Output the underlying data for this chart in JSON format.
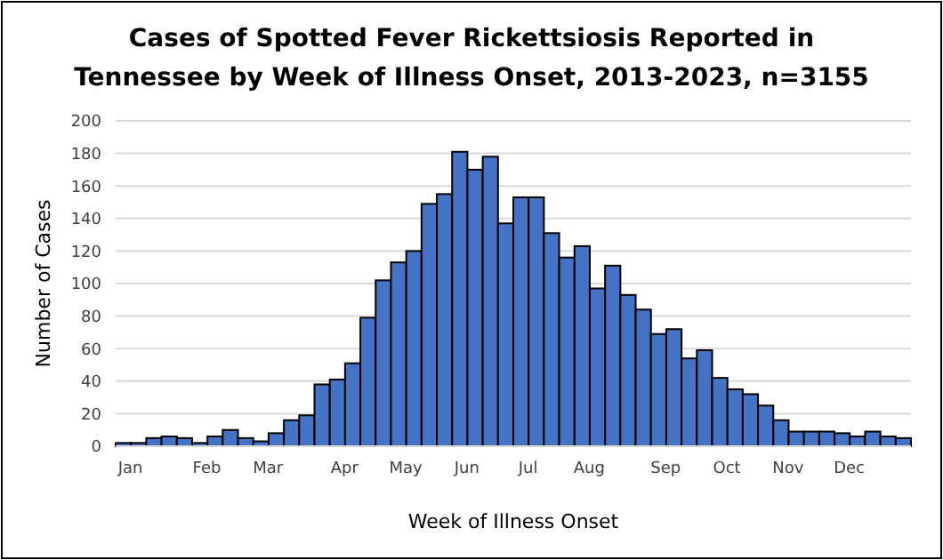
{
  "chart_data": {
    "type": "bar",
    "title": "Cases of Spotted Fever Rickettsiosis Reported in Tennessee by Week of Illness Onset, 2013-2023, n=3155",
    "xlabel": "Week of Illness Onset",
    "ylabel": "Number of Cases",
    "categories": [
      "Jan",
      null,
      null,
      null,
      null,
      "Feb",
      null,
      null,
      null,
      "Mar",
      null,
      null,
      null,
      null,
      "Apr",
      null,
      null,
      null,
      "May",
      null,
      null,
      null,
      "Jun",
      null,
      null,
      null,
      "Jul",
      null,
      null,
      null,
      "Aug",
      null,
      null,
      null,
      null,
      "Sep",
      null,
      null,
      null,
      "Oct",
      null,
      null,
      null,
      "Nov",
      null,
      null,
      null,
      "Dec",
      null,
      null,
      null,
      null
    ],
    "values": [
      2,
      2,
      5,
      6,
      5,
      2,
      6,
      10,
      5,
      3,
      8,
      16,
      19,
      38,
      41,
      51,
      79,
      102,
      113,
      120,
      149,
      155,
      181,
      170,
      178,
      137,
      153,
      153,
      131,
      116,
      123,
      97,
      111,
      93,
      84,
      69,
      72,
      54,
      59,
      42,
      35,
      32,
      25,
      16,
      9,
      9,
      9,
      8,
      6,
      9,
      6,
      5
    ],
    "color": "#4472c4",
    "ylim": [
      0,
      200
    ],
    "yticks": [
      0,
      20,
      40,
      60,
      80,
      100,
      120,
      140,
      160,
      180,
      200
    ],
    "grid": "y"
  }
}
